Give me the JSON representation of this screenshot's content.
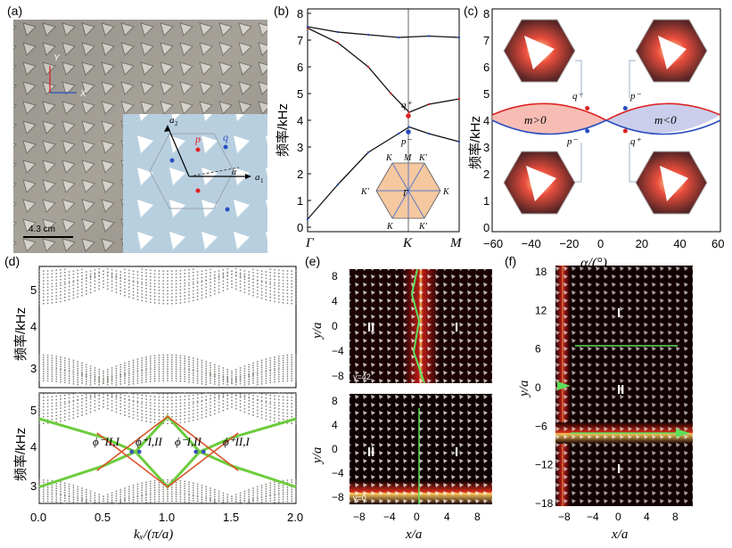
{
  "panels": {
    "a": {
      "label": "(a)",
      "axis_y": "Y",
      "axis_x": "X",
      "scale": "4.3 cm",
      "a1": "a",
      "a1_sub": "1",
      "a2": "a",
      "a2_sub": "2",
      "p": "p",
      "q": "q",
      "alpha": "α"
    },
    "b": {
      "label": "(b)",
      "ylabel": "频率/kHz",
      "xticks": [
        "Γ",
        "K",
        "M"
      ],
      "yticks": [
        "0",
        "1",
        "2",
        "3",
        "4",
        "5",
        "6",
        "7",
        "8"
      ],
      "q_plus": "q⁺",
      "p_minus": "p⁻",
      "bz_labels": [
        "K",
        "M",
        "K′",
        "K′",
        "Γ",
        "K",
        "K",
        "K′"
      ]
    },
    "c": {
      "label": "(c)",
      "ylabel": "频率/kHz",
      "xlabel": "α/(°)",
      "xticks": [
        "−60",
        "−40",
        "−20",
        "0",
        "20",
        "40",
        "60"
      ],
      "yticks": [
        "0",
        "1",
        "2",
        "3",
        "4",
        "5",
        "6",
        "7",
        "8"
      ],
      "m_pos": "m>0",
      "m_neg": "m<0",
      "q_plus_l": "q⁺",
      "p_minus_l": "p⁻",
      "p_minus_r": "p⁻",
      "q_plus_r": "q⁺"
    },
    "d": {
      "label": "(d)",
      "ylabel": "频率/kHz",
      "xlabel": "kₓ/(π/a)",
      "xticks": [
        "0.0",
        "0.5",
        "1.0",
        "1.5",
        "2.0"
      ],
      "yticks_top": [
        "3",
        "4",
        "5"
      ],
      "yticks_bot": [
        "3",
        "4",
        "5"
      ],
      "phi": [
        "ϕ⁻II,I",
        "ϕ⁺I,II",
        "ϕ⁻I,II",
        "ϕ⁺II,I"
      ]
    },
    "e": {
      "label": "(e)",
      "ylabel": "y/a",
      "xlabel": "x/a",
      "xticks": [
        "−8",
        "−4",
        "0",
        "4",
        "8"
      ],
      "yticks": [
        "8",
        "4",
        "0",
        "−4",
        "−8"
      ],
      "gamma_top": "γ=42",
      "gamma_bot": "γ=0",
      "region_left": "II",
      "region_right": "I"
    },
    "f": {
      "label": "(f)",
      "ylabel": "y/a",
      "xlabel": "x/a",
      "xticks": [
        "−8",
        "−4",
        "0",
        "4",
        "8"
      ],
      "yticks": [
        "18",
        "12",
        "6",
        "0",
        "−6",
        "−12",
        "−18"
      ],
      "regions": [
        "I",
        "II",
        "I"
      ]
    }
  },
  "chart_data": [
    {
      "type": "line",
      "panel": "b",
      "title": "",
      "xlabel": "",
      "ylabel": "频率/kHz",
      "ylim": [
        0,
        8
      ],
      "x_ticks": [
        "Γ",
        "K",
        "M"
      ],
      "series": [
        {
          "name": "band 1",
          "points": [
            [
              0,
              0.3
            ],
            [
              0.2,
              1.6
            ],
            [
              0.4,
              2.8
            ],
            [
              0.6,
              3.5
            ],
            [
              0.67,
              3.75
            ],
            [
              0.8,
              3.5
            ],
            [
              1.0,
              3.2
            ]
          ]
        },
        {
          "name": "band 2",
          "points": [
            [
              0,
              7.45
            ],
            [
              0.2,
              6.9
            ],
            [
              0.4,
              6.0
            ],
            [
              0.55,
              5.0
            ],
            [
              0.67,
              4.3
            ],
            [
              0.8,
              4.6
            ],
            [
              1.0,
              4.8
            ]
          ]
        },
        {
          "name": "band 3",
          "points": [
            [
              0,
              7.5
            ],
            [
              0.2,
              7.3
            ],
            [
              0.4,
              7.2
            ],
            [
              0.6,
              7.1
            ],
            [
              0.8,
              7.15
            ],
            [
              1.0,
              7.1
            ]
          ]
        }
      ]
    },
    {
      "type": "area",
      "panel": "c",
      "xlabel": "α/(°)",
      "ylabel": "频率/kHz",
      "xlim": [
        -60,
        60
      ],
      "ylim": [
        0,
        8
      ],
      "series": [
        {
          "name": "upper band",
          "points": [
            [
              -60,
              4.2
            ],
            [
              -30,
              4.8
            ],
            [
              0,
              4.0
            ],
            [
              30,
              4.8
            ],
            [
              60,
              4.2
            ]
          ]
        },
        {
          "name": "lower band",
          "points": [
            [
              -60,
              4.0
            ],
            [
              -30,
              3.3
            ],
            [
              0,
              4.0
            ],
            [
              30,
              3.3
            ],
            [
              60,
              4.0
            ]
          ]
        }
      ]
    },
    {
      "type": "scatter",
      "panel": "d",
      "xlabel": "kₓ/(π/a)",
      "ylabel": "频率/kHz",
      "xlim": [
        0,
        2
      ],
      "ylim": [
        2.9,
        5.3
      ],
      "series": [
        {
          "name": "edge state green upper",
          "points": [
            [
              0,
              4.7
            ],
            [
              0.5,
              4.3
            ],
            [
              0.75,
              4.0
            ],
            [
              1.0,
              4.75
            ],
            [
              1.25,
              4.0
            ],
            [
              1.5,
              4.3
            ],
            [
              2.0,
              4.7
            ]
          ]
        },
        {
          "name": "edge state green lower",
          "points": [
            [
              0,
              3.25
            ],
            [
              0.5,
              3.7
            ],
            [
              0.75,
              4.0
            ],
            [
              1.0,
              3.25
            ],
            [
              1.25,
              4.0
            ],
            [
              1.5,
              3.7
            ],
            [
              2.0,
              3.25
            ]
          ]
        }
      ]
    }
  ]
}
